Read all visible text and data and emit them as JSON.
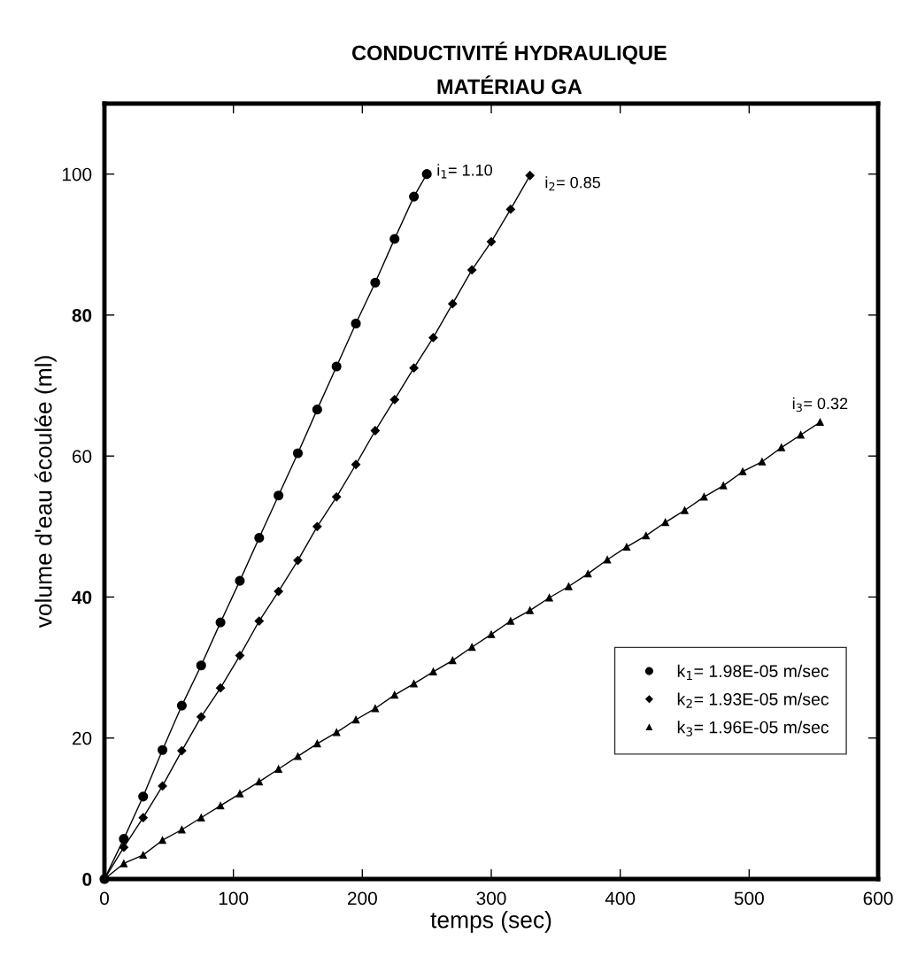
{
  "chart_data": {
    "type": "line",
    "title": "CONDUCTIVITÉ HYDRAULIQUE",
    "subtitle": "MATÉRIAU GA",
    "xlabel": "temps (sec)",
    "ylabel": "volume d'eau écoulée (ml)",
    "xlim": [
      0,
      600
    ],
    "xticks": [
      0,
      100,
      200,
      300,
      400,
      500,
      600
    ],
    "ylim": [
      0,
      110
    ],
    "yticks": [
      0,
      20,
      40,
      60,
      80,
      100
    ],
    "grid": false,
    "legend": "bottom right",
    "line_style": "solid",
    "annotations": [
      {
        "text": "i$_{1}$= 1.10",
        "x": 250,
        "y": 100
      },
      {
        "text": "i$_{2}$= 0.85",
        "x": 330,
        "y": 100
      },
      {
        "text": "i$_{3}$= 0.32",
        "x": 555,
        "y": 64.8
      }
    ],
    "series": [
      {
        "name": "k$_{1}$= 1.98E-05 m/sec",
        "color": "#000000",
        "marker": "circle",
        "x": [
          0,
          15,
          30,
          45,
          60,
          75,
          90,
          105,
          120,
          135,
          150,
          165,
          180,
          195,
          210,
          225,
          240,
          250
        ],
        "values": [
          0,
          5.7,
          11.7,
          18.3,
          24.6,
          30.3,
          36.4,
          42.3,
          48.4,
          54.4,
          60.4,
          66.6,
          72.7,
          78.8,
          84.6,
          90.8,
          96.8,
          100
        ]
      },
      {
        "name": "k$_{2}$= 1.93E-05 m/sec",
        "color": "#000000",
        "marker": "diamond",
        "x": [
          0,
          15,
          30,
          45,
          60,
          75,
          90,
          105,
          120,
          135,
          150,
          165,
          180,
          195,
          210,
          225,
          240,
          255,
          270,
          285,
          300,
          315,
          330
        ],
        "values": [
          0,
          4.5,
          8.7,
          13.2,
          18.2,
          23.0,
          27.1,
          31.7,
          36.6,
          40.8,
          45.2,
          50.0,
          54.2,
          58.8,
          63.6,
          68.0,
          72.5,
          76.8,
          81.6,
          86.4,
          90.4,
          95.0,
          99.8
        ]
      },
      {
        "name": "k$_{3}$= 1.96E-05 m/sec",
        "color": "#000000",
        "marker": "triangle",
        "x": [
          0,
          15,
          30,
          45,
          60,
          75,
          90,
          105,
          120,
          135,
          150,
          165,
          180,
          195,
          210,
          225,
          240,
          255,
          270,
          285,
          300,
          315,
          330,
          345,
          360,
          375,
          390,
          405,
          420,
          435,
          450,
          465,
          480,
          495,
          510,
          525,
          540,
          555
        ],
        "values": [
          0,
          2.2,
          3.4,
          5.5,
          7.0,
          8.7,
          10.4,
          12.1,
          13.8,
          15.6,
          17.4,
          19.2,
          20.8,
          22.6,
          24.2,
          26.1,
          27.7,
          29.4,
          31.0,
          32.9,
          34.7,
          36.6,
          38.1,
          39.9,
          41.5,
          43.3,
          45.3,
          47.1,
          48.7,
          50.6,
          52.3,
          54.2,
          55.8,
          57.8,
          59.2,
          61.2,
          63.0,
          64.8
        ]
      }
    ]
  }
}
